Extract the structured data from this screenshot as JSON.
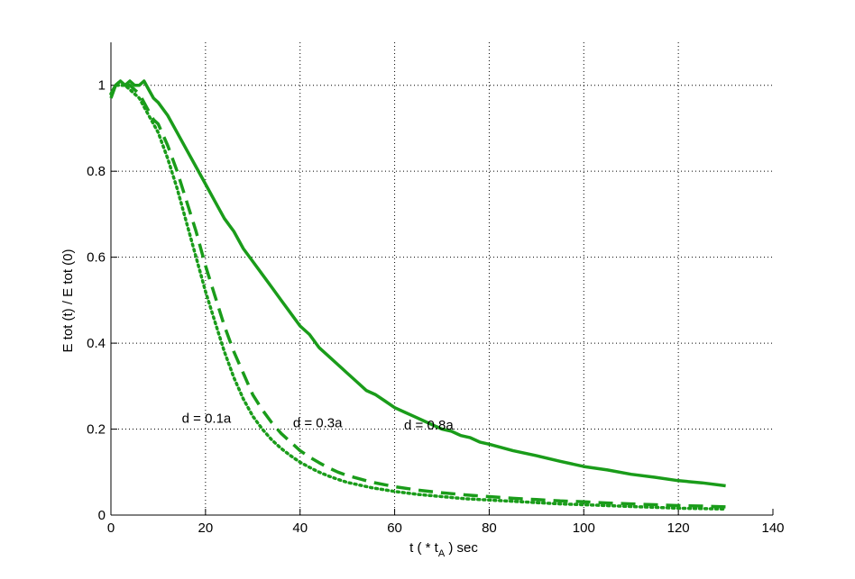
{
  "chart_data": {
    "type": "line",
    "title": "",
    "xlabel": "t ( * t",
    "xlabel_subscript": "A",
    "xlabel_suffix": " ) sec",
    "ylabel": "E tot (t) / E tot (0)",
    "xlim": [
      0,
      140
    ],
    "ylim": [
      0,
      1.1
    ],
    "xticks": [
      0,
      20,
      40,
      60,
      80,
      100,
      120,
      140
    ],
    "xtick_labels": [
      "0",
      "20",
      "40",
      "60",
      "80",
      "100",
      "120",
      "140"
    ],
    "yticks": [
      0,
      0.2,
      0.4,
      0.6,
      0.8,
      1
    ],
    "ytick_labels": [
      "0",
      "0.2",
      "0.4",
      "0.6",
      "0.8",
      "1"
    ],
    "grid": true,
    "grid_style": "dotted",
    "color": "#1a9c1a",
    "series": [
      {
        "style": "solid",
        "x": [
          0,
          1,
          2,
          3,
          4,
          5,
          6,
          7,
          8,
          9,
          10,
          12,
          14,
          16,
          18,
          20,
          22,
          24,
          26,
          28,
          30,
          32,
          34,
          36,
          38,
          40,
          42,
          44,
          46,
          48,
          50,
          52,
          54,
          56,
          58,
          60,
          62,
          64,
          66,
          68,
          70,
          72,
          74,
          76,
          78,
          80,
          85,
          90,
          95,
          100,
          105,
          110,
          115,
          120,
          125,
          130
        ],
        "values": [
          0.97,
          1.0,
          1.01,
          1.0,
          1.01,
          1.0,
          1.0,
          1.01,
          0.99,
          0.97,
          0.96,
          0.93,
          0.89,
          0.85,
          0.81,
          0.77,
          0.73,
          0.69,
          0.66,
          0.62,
          0.59,
          0.56,
          0.53,
          0.5,
          0.47,
          0.44,
          0.42,
          0.39,
          0.37,
          0.35,
          0.33,
          0.31,
          0.29,
          0.28,
          0.265,
          0.25,
          0.24,
          0.23,
          0.22,
          0.21,
          0.2,
          0.195,
          0.185,
          0.18,
          0.17,
          0.165,
          0.15,
          0.138,
          0.125,
          0.113,
          0.105,
          0.095,
          0.088,
          0.08,
          0.075,
          0.068
        ]
      },
      {
        "style": "dashed",
        "x": [
          0,
          1,
          2,
          3,
          4,
          5,
          6,
          7,
          8,
          9,
          10,
          12,
          14,
          16,
          18,
          20,
          22,
          24,
          26,
          28,
          30,
          32,
          34,
          36,
          38,
          40,
          42,
          44,
          46,
          48,
          50,
          55,
          60,
          65,
          70,
          75,
          80,
          85,
          90,
          95,
          100,
          105,
          110,
          115,
          120,
          125,
          130
        ],
        "values": [
          0.98,
          1.0,
          1.01,
          1.0,
          1.0,
          0.99,
          0.98,
          0.96,
          0.94,
          0.92,
          0.91,
          0.86,
          0.8,
          0.73,
          0.66,
          0.58,
          0.51,
          0.44,
          0.38,
          0.33,
          0.28,
          0.245,
          0.215,
          0.19,
          0.17,
          0.15,
          0.135,
          0.122,
          0.11,
          0.1,
          0.092,
          0.077,
          0.066,
          0.058,
          0.052,
          0.047,
          0.043,
          0.039,
          0.036,
          0.033,
          0.031,
          0.028,
          0.026,
          0.024,
          0.022,
          0.021,
          0.019
        ]
      },
      {
        "style": "dotted",
        "x": [
          0,
          1,
          2,
          3,
          4,
          5,
          6,
          7,
          8,
          9,
          10,
          12,
          14,
          16,
          18,
          20,
          22,
          24,
          26,
          28,
          30,
          32,
          34,
          36,
          38,
          40,
          42,
          44,
          46,
          48,
          50,
          55,
          60,
          65,
          70,
          75,
          80,
          85,
          90,
          95,
          100,
          105,
          110,
          115,
          120,
          125,
          130
        ],
        "values": [
          0.98,
          1.0,
          1.0,
          1.0,
          0.99,
          0.98,
          0.97,
          0.95,
          0.93,
          0.91,
          0.89,
          0.83,
          0.76,
          0.68,
          0.6,
          0.52,
          0.45,
          0.38,
          0.32,
          0.27,
          0.23,
          0.2,
          0.175,
          0.155,
          0.138,
          0.123,
          0.111,
          0.1,
          0.091,
          0.083,
          0.076,
          0.064,
          0.055,
          0.048,
          0.043,
          0.038,
          0.035,
          0.032,
          0.029,
          0.026,
          0.024,
          0.022,
          0.02,
          0.018,
          0.016,
          0.015,
          0.014
        ]
      }
    ],
    "annotations": [
      {
        "text": "d = 0.1a",
        "x": 15,
        "y": 0.225
      },
      {
        "text": "d = 0.3a",
        "x": 38.5,
        "y": 0.215
      },
      {
        "text": "d = 0.8a",
        "x": 62,
        "y": 0.21
      }
    ]
  }
}
